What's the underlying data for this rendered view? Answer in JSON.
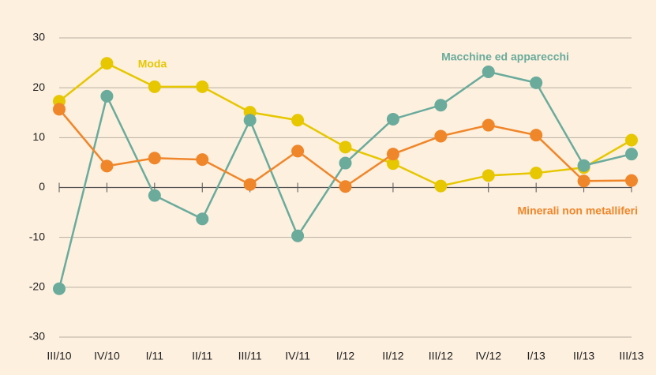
{
  "chart_data": {
    "type": "line",
    "categories": [
      "III/10",
      "IV/10",
      "I/11",
      "II/11",
      "III/11",
      "IV/11",
      "I/12",
      "II/12",
      "III/12",
      "IV/12",
      "I/13",
      "II/13",
      "III/13"
    ],
    "series": [
      {
        "name": "Moda",
        "color": "#e6c700",
        "values": [
          17.3,
          24.9,
          20.2,
          20.2,
          15.1,
          13.5,
          8.1,
          4.8,
          0.3,
          2.4,
          2.9,
          4.0,
          9.5
        ]
      },
      {
        "name": "Macchine ed apparecchi",
        "color": "#6aab9c",
        "values": [
          -20.3,
          18.3,
          -1.6,
          -6.3,
          13.5,
          -9.7,
          4.9,
          13.7,
          16.5,
          23.2,
          21.0,
          4.4,
          6.7
        ]
      },
      {
        "name": "Minerali non metalliferi",
        "color": "#f0862a",
        "values": [
          15.7,
          4.3,
          5.9,
          5.6,
          0.6,
          7.3,
          0.2,
          6.7,
          10.3,
          12.5,
          10.5,
          1.3,
          1.4
        ]
      }
    ],
    "ylim": [
      -30,
      30
    ],
    "yticks": [
      -30,
      -20,
      -10,
      0,
      10,
      20,
      30
    ],
    "grid": true
  }
}
